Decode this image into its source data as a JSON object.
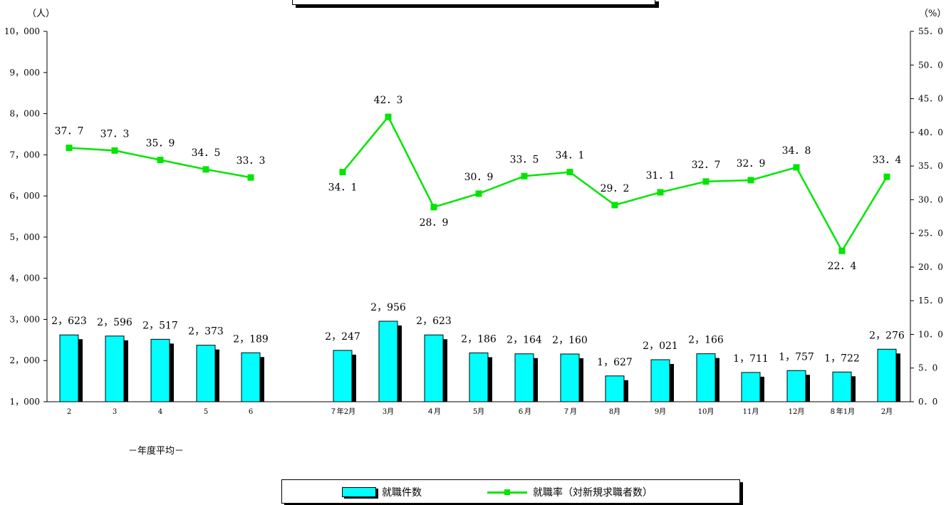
{
  "units": {
    "left": "（人）",
    "right": "（%）"
  },
  "group_label": "－年度平均－",
  "legend": {
    "bar": "就職件数",
    "line": "就職率（対新規求職者数）"
  },
  "colors": {
    "bar": "#00ffff",
    "bar_shadow": "#000000",
    "line": "#00e600"
  },
  "chart_data": {
    "type": "bar",
    "categories": [
      "2",
      "3",
      "4",
      "5",
      "6",
      "７年2月",
      "3月",
      "４月",
      "5月",
      "６月",
      "７月",
      "8月",
      "9月",
      "10月",
      "11月",
      "12月",
      "８年1月",
      "2月"
    ],
    "series": [
      {
        "name": "就職件数",
        "type": "bar",
        "axis": "left",
        "values": [
          2623,
          2596,
          2517,
          2373,
          2189,
          2247,
          2956,
          2623,
          2186,
          2164,
          2160,
          1627,
          2021,
          2166,
          1711,
          1757,
          1722,
          2276
        ],
        "labels": [
          "2，623",
          "2，596",
          "2，517",
          "2，373",
          "2，189",
          "2，247",
          "2，956",
          "2，623",
          "2，186",
          "2，164",
          "2，160",
          "1，627",
          "2，021",
          "2，166",
          "1，711",
          "1，757",
          "1，722",
          "2，276"
        ]
      },
      {
        "name": "就職率（対新規求職者数）",
        "type": "line",
        "axis": "right",
        "segments": [
          [
            0,
            4
          ],
          [
            5,
            17
          ]
        ],
        "values": [
          37.7,
          37.3,
          35.9,
          34.5,
          33.3,
          34.1,
          42.3,
          28.9,
          30.9,
          33.5,
          34.1,
          29.2,
          31.1,
          32.7,
          32.9,
          34.8,
          22.4,
          33.4
        ],
        "labels": [
          "37．7",
          "37．3",
          "35．9",
          "34．5",
          "33．3",
          "34．1",
          "42．3",
          "28．9",
          "30．9",
          "33．5",
          "34．1",
          "29．2",
          "31．1",
          "32．7",
          "32．9",
          "34．8",
          "22．4",
          "33．4"
        ]
      }
    ],
    "y_left": {
      "range": [
        1000,
        10000
      ],
      "ticks": [
        1000,
        2000,
        3000,
        4000,
        5000,
        6000,
        7000,
        8000,
        9000,
        10000
      ],
      "tick_labels": [
        "1，000",
        "2，000",
        "3，000",
        "4，000",
        "5，000",
        "6，000",
        "7，000",
        "8，000",
        "9，000",
        "10，000"
      ]
    },
    "y_right": {
      "range": [
        0,
        55
      ],
      "ticks": [
        0,
        5,
        10,
        15,
        20,
        25,
        30,
        35,
        40,
        45,
        50,
        55
      ],
      "tick_labels": [
        "0．0",
        "5．0",
        "10．0",
        "15．0",
        "20．0",
        "25．0",
        "30．0",
        "35．0",
        "40．0",
        "45．0",
        "50．0",
        "55．0"
      ]
    },
    "grid": false,
    "legend_position": "bottom"
  }
}
